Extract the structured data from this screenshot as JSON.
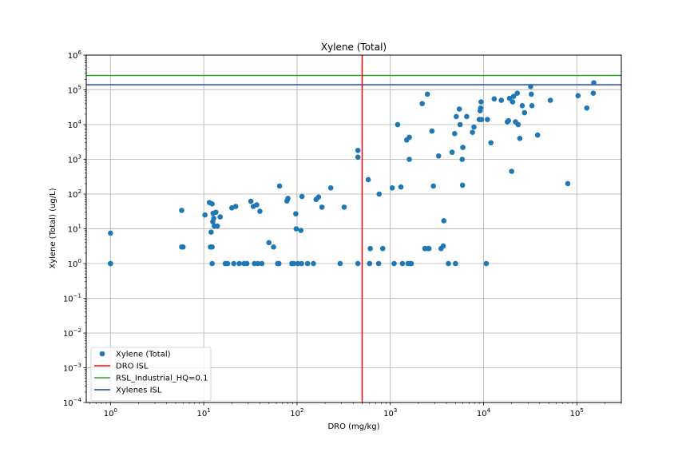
{
  "chart_data": {
    "type": "scatter",
    "title": "Xylene (Total)",
    "xlabel": "DRO (mg/kg)",
    "ylabel": "Xylene (Total) (ug/L)",
    "x_scale": "log",
    "y_scale": "log",
    "xlim": [
      0.55,
      300000
    ],
    "ylim": [
      0.0001,
      1000000
    ],
    "grid": true,
    "legend_position": "lower-left",
    "x_ticks": [
      1,
      10,
      100,
      1000,
      10000,
      100000
    ],
    "x_tick_labels": [
      {
        "base": "10",
        "exp": "0"
      },
      {
        "base": "10",
        "exp": "1"
      },
      {
        "base": "10",
        "exp": "2"
      },
      {
        "base": "10",
        "exp": "3"
      },
      {
        "base": "10",
        "exp": "4"
      },
      {
        "base": "10",
        "exp": "5"
      }
    ],
    "y_ticks": [
      0.0001,
      0.001,
      0.01,
      0.1,
      1,
      10,
      100,
      1000,
      10000,
      100000,
      1000000
    ],
    "y_tick_labels": [
      {
        "base": "10",
        "exp": "−4"
      },
      {
        "base": "10",
        "exp": "−3"
      },
      {
        "base": "10",
        "exp": "−2"
      },
      {
        "base": "10",
        "exp": "−1"
      },
      {
        "base": "10",
        "exp": "0"
      },
      {
        "base": "10",
        "exp": "1"
      },
      {
        "base": "10",
        "exp": "2"
      },
      {
        "base": "10",
        "exp": "3"
      },
      {
        "base": "10",
        "exp": "4"
      },
      {
        "base": "10",
        "exp": "5"
      },
      {
        "base": "10",
        "exp": "6"
      }
    ],
    "scatter_series": {
      "name": "Xylene (Total)",
      "color": "#1f77b4",
      "points": [
        [
          1,
          7.5
        ],
        [
          1,
          1
        ],
        [
          1,
          1
        ],
        [
          5.8,
          34
        ],
        [
          5.8,
          3
        ],
        [
          6,
          3
        ],
        [
          10.3,
          25
        ],
        [
          11.5,
          57
        ],
        [
          11.8,
          3
        ],
        [
          12,
          8
        ],
        [
          12.3,
          52
        ],
        [
          12.3,
          1
        ],
        [
          12.3,
          3
        ],
        [
          12.5,
          16
        ],
        [
          12.6,
          28
        ],
        [
          12.8,
          20
        ],
        [
          13,
          12
        ],
        [
          13.5,
          30
        ],
        [
          14,
          12
        ],
        [
          15,
          22
        ],
        [
          17,
          1
        ],
        [
          18,
          1
        ],
        [
          20,
          40
        ],
        [
          21,
          1
        ],
        [
          22,
          44
        ],
        [
          24,
          1
        ],
        [
          27,
          1
        ],
        [
          29,
          1
        ],
        [
          32,
          62
        ],
        [
          34,
          44
        ],
        [
          35,
          1
        ],
        [
          37,
          49
        ],
        [
          38,
          1
        ],
        [
          40,
          32
        ],
        [
          42,
          1
        ],
        [
          50,
          4
        ],
        [
          56,
          3
        ],
        [
          62,
          1
        ],
        [
          64,
          1
        ],
        [
          65,
          170
        ],
        [
          78,
          63
        ],
        [
          80,
          75
        ],
        [
          88,
          1
        ],
        [
          92,
          1
        ],
        [
          97,
          27
        ],
        [
          98,
          10
        ],
        [
          102,
          1
        ],
        [
          110,
          9
        ],
        [
          112,
          1
        ],
        [
          113,
          85
        ],
        [
          130,
          1
        ],
        [
          150,
          1
        ],
        [
          160,
          70
        ],
        [
          170,
          82
        ],
        [
          185,
          42
        ],
        [
          230,
          150
        ],
        [
          290,
          1
        ],
        [
          320,
          42
        ],
        [
          450,
          1800
        ],
        [
          450,
          1150
        ],
        [
          450,
          1
        ],
        [
          580,
          260
        ],
        [
          600,
          1
        ],
        [
          610,
          2.7
        ],
        [
          750,
          1
        ],
        [
          760,
          100
        ],
        [
          830,
          2.7
        ],
        [
          1050,
          150
        ],
        [
          1100,
          1
        ],
        [
          1200,
          10000
        ],
        [
          1300,
          160
        ],
        [
          1350,
          1
        ],
        [
          1500,
          3600
        ],
        [
          1550,
          1
        ],
        [
          1600,
          4300
        ],
        [
          1600,
          1000
        ],
        [
          1650,
          1
        ],
        [
          1680,
          1
        ],
        [
          2200,
          40000
        ],
        [
          2350,
          2.7
        ],
        [
          2500,
          75000
        ],
        [
          2550,
          2.7
        ],
        [
          2600,
          2.7
        ],
        [
          2800,
          6500
        ],
        [
          2900,
          170
        ],
        [
          3300,
          1250
        ],
        [
          3500,
          2.7
        ],
        [
          3700,
          3.2
        ],
        [
          3750,
          17
        ],
        [
          4200,
          1
        ],
        [
          4600,
          1600
        ],
        [
          4900,
          5500
        ],
        [
          5000,
          1
        ],
        [
          5100,
          17000
        ],
        [
          5500,
          28000
        ],
        [
          5600,
          10000
        ],
        [
          5900,
          1000
        ],
        [
          5950,
          180
        ],
        [
          6000,
          2200
        ],
        [
          6600,
          17000
        ],
        [
          7600,
          6000
        ],
        [
          7900,
          8500
        ],
        [
          9000,
          14000
        ],
        [
          9200,
          25000
        ],
        [
          9300,
          30000
        ],
        [
          9400,
          45000
        ],
        [
          9500,
          14000
        ],
        [
          10700,
          1
        ],
        [
          11000,
          14000
        ],
        [
          12000,
          3000
        ],
        [
          13000,
          55000
        ],
        [
          15500,
          50000
        ],
        [
          18000,
          12000
        ],
        [
          18500,
          13000
        ],
        [
          19000,
          57000
        ],
        [
          20000,
          450
        ],
        [
          20500,
          45000
        ],
        [
          21000,
          65000
        ],
        [
          22000,
          12000
        ],
        [
          23000,
          80000
        ],
        [
          23500,
          10000
        ],
        [
          24500,
          4000
        ],
        [
          26000,
          35000
        ],
        [
          27500,
          22000
        ],
        [
          32000,
          125000
        ],
        [
          32500,
          75000
        ],
        [
          33000,
          35000
        ],
        [
          38000,
          5000
        ],
        [
          52000,
          50000
        ],
        [
          80000,
          200
        ],
        [
          103000,
          68000
        ],
        [
          128000,
          30000
        ],
        [
          150000,
          80000
        ],
        [
          152000,
          160000
        ]
      ]
    },
    "hlines": [
      {
        "name": "RSL_Industrial_HQ=0.1",
        "y": 260000,
        "color": "#2ca02c"
      },
      {
        "name": "Xylenes ISL",
        "y": 140000,
        "color": "#1f3fbf"
      }
    ],
    "vlines": [
      {
        "name": "DRO ISL",
        "x": 500,
        "color": "#ff0000"
      }
    ],
    "legend": [
      {
        "label": "Xylene (Total)",
        "kind": "marker",
        "color": "#1f77b4"
      },
      {
        "label": "DRO ISL",
        "kind": "line",
        "color": "#ff0000"
      },
      {
        "label": "RSL_Industrial_HQ=0.1",
        "kind": "line",
        "color": "#2ca02c"
      },
      {
        "label": "Xylenes ISL",
        "kind": "line",
        "color": "#1f3fbf"
      }
    ]
  }
}
